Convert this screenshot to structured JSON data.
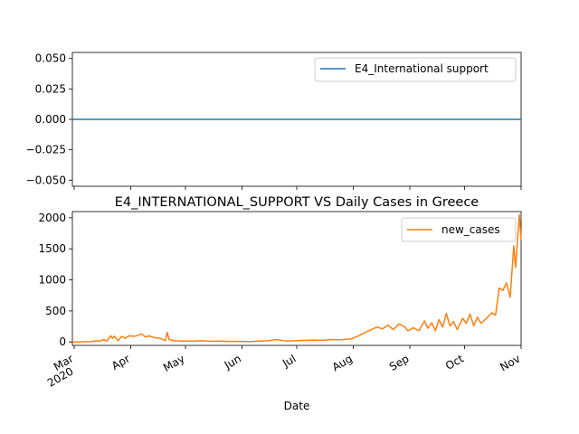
{
  "chart_data": [
    {
      "type": "line",
      "title": "",
      "xlabel": "",
      "ylabel": "",
      "ylim": [
        -0.055,
        0.055
      ],
      "yticks": [
        "0.050",
        "0.025",
        "0.000",
        "−0.025",
        "−0.050"
      ],
      "ytick_values": [
        0.05,
        0.025,
        0.0,
        -0.025,
        -0.05
      ],
      "x_range": [
        "2020-02-29",
        "2020-11-01"
      ],
      "series": [
        {
          "name": "E4_International support",
          "color": "#1f77b4",
          "x": [
            "2020-02-29",
            "2020-11-01"
          ],
          "values": [
            0,
            0
          ]
        }
      ],
      "legend": "top-right",
      "grid": false
    },
    {
      "type": "line",
      "title": "E4_INTERNATIONAL_SUPPORT VS Daily Cases in Greece",
      "xlabel": "Date",
      "ylabel": "",
      "ylim": [
        -55,
        2100
      ],
      "yticks": [
        "0",
        "500",
        "1000",
        "1500",
        "2000"
      ],
      "ytick_values": [
        0,
        500,
        1000,
        1500,
        2000
      ],
      "x_range": [
        "2020-02-29",
        "2020-11-01"
      ],
      "xticks": [
        {
          "date": "2020-03-01",
          "label": "Mar",
          "sublabel": "2020"
        },
        {
          "date": "2020-04-01",
          "label": "Apr",
          "sublabel": ""
        },
        {
          "date": "2020-05-01",
          "label": "May",
          "sublabel": ""
        },
        {
          "date": "2020-06-01",
          "label": "Jun",
          "sublabel": ""
        },
        {
          "date": "2020-07-01",
          "label": "Jul",
          "sublabel": ""
        },
        {
          "date": "2020-08-01",
          "label": "Aug",
          "sublabel": ""
        },
        {
          "date": "2020-09-01",
          "label": "Sep",
          "sublabel": ""
        },
        {
          "date": "2020-10-01",
          "label": "Oct",
          "sublabel": ""
        },
        {
          "date": "2020-11-01",
          "label": "Nov",
          "sublabel": ""
        }
      ],
      "series": [
        {
          "name": "new_cases",
          "color": "#ff7f0e",
          "points": [
            [
              "2020-02-29",
              0
            ],
            [
              "2020-03-05",
              2
            ],
            [
              "2020-03-10",
              5
            ],
            [
              "2020-03-13",
              20
            ],
            [
              "2020-03-15",
              12
            ],
            [
              "2020-03-17",
              40
            ],
            [
              "2020-03-19",
              15
            ],
            [
              "2020-03-21",
              100
            ],
            [
              "2020-03-22",
              60
            ],
            [
              "2020-03-23",
              95
            ],
            [
              "2020-03-25",
              20
            ],
            [
              "2020-03-27",
              90
            ],
            [
              "2020-03-29",
              60
            ],
            [
              "2020-03-31",
              100
            ],
            [
              "2020-04-03",
              90
            ],
            [
              "2020-04-05",
              110
            ],
            [
              "2020-04-07",
              130
            ],
            [
              "2020-04-09",
              80
            ],
            [
              "2020-04-11",
              100
            ],
            [
              "2020-04-14",
              70
            ],
            [
              "2020-04-17",
              60
            ],
            [
              "2020-04-20",
              20
            ],
            [
              "2020-04-21",
              156
            ],
            [
              "2020-04-22",
              40
            ],
            [
              "2020-04-25",
              20
            ],
            [
              "2020-04-30",
              15
            ],
            [
              "2020-05-05",
              12
            ],
            [
              "2020-05-10",
              20
            ],
            [
              "2020-05-15",
              10
            ],
            [
              "2020-05-20",
              15
            ],
            [
              "2020-05-25",
              8
            ],
            [
              "2020-05-31",
              10
            ],
            [
              "2020-06-05",
              5
            ],
            [
              "2020-06-10",
              15
            ],
            [
              "2020-06-15",
              20
            ],
            [
              "2020-06-20",
              40
            ],
            [
              "2020-06-25",
              15
            ],
            [
              "2020-06-30",
              20
            ],
            [
              "2020-07-05",
              25
            ],
            [
              "2020-07-10",
              30
            ],
            [
              "2020-07-15",
              25
            ],
            [
              "2020-07-20",
              40
            ],
            [
              "2020-07-25",
              35
            ],
            [
              "2020-07-31",
              50
            ],
            [
              "2020-08-04",
              100
            ],
            [
              "2020-08-08",
              160
            ],
            [
              "2020-08-11",
              200
            ],
            [
              "2020-08-14",
              240
            ],
            [
              "2020-08-17",
              210
            ],
            [
              "2020-08-20",
              270
            ],
            [
              "2020-08-23",
              200
            ],
            [
              "2020-08-26",
              290
            ],
            [
              "2020-08-29",
              250
            ],
            [
              "2020-08-31",
              180
            ],
            [
              "2020-09-03",
              230
            ],
            [
              "2020-09-06",
              180
            ],
            [
              "2020-09-09",
              340
            ],
            [
              "2020-09-11",
              220
            ],
            [
              "2020-09-13",
              310
            ],
            [
              "2020-09-15",
              180
            ],
            [
              "2020-09-17",
              360
            ],
            [
              "2020-09-19",
              240
            ],
            [
              "2020-09-21",
              460
            ],
            [
              "2020-09-23",
              260
            ],
            [
              "2020-09-25",
              330
            ],
            [
              "2020-09-27",
              200
            ],
            [
              "2020-09-30",
              380
            ],
            [
              "2020-10-02",
              300
            ],
            [
              "2020-10-04",
              450
            ],
            [
              "2020-10-06",
              260
            ],
            [
              "2020-10-08",
              400
            ],
            [
              "2020-10-10",
              300
            ],
            [
              "2020-10-13",
              380
            ],
            [
              "2020-10-16",
              470
            ],
            [
              "2020-10-18",
              430
            ],
            [
              "2020-10-20",
              870
            ],
            [
              "2020-10-22",
              830
            ],
            [
              "2020-10-24",
              950
            ],
            [
              "2020-10-26",
              720
            ],
            [
              "2020-10-28",
              1550
            ],
            [
              "2020-10-29",
              1200
            ],
            [
              "2020-10-31",
              2050
            ],
            [
              "2020-11-01",
              1650
            ]
          ]
        }
      ],
      "legend": "top-right",
      "grid": false
    }
  ],
  "x_axis": {
    "label": "Date"
  }
}
